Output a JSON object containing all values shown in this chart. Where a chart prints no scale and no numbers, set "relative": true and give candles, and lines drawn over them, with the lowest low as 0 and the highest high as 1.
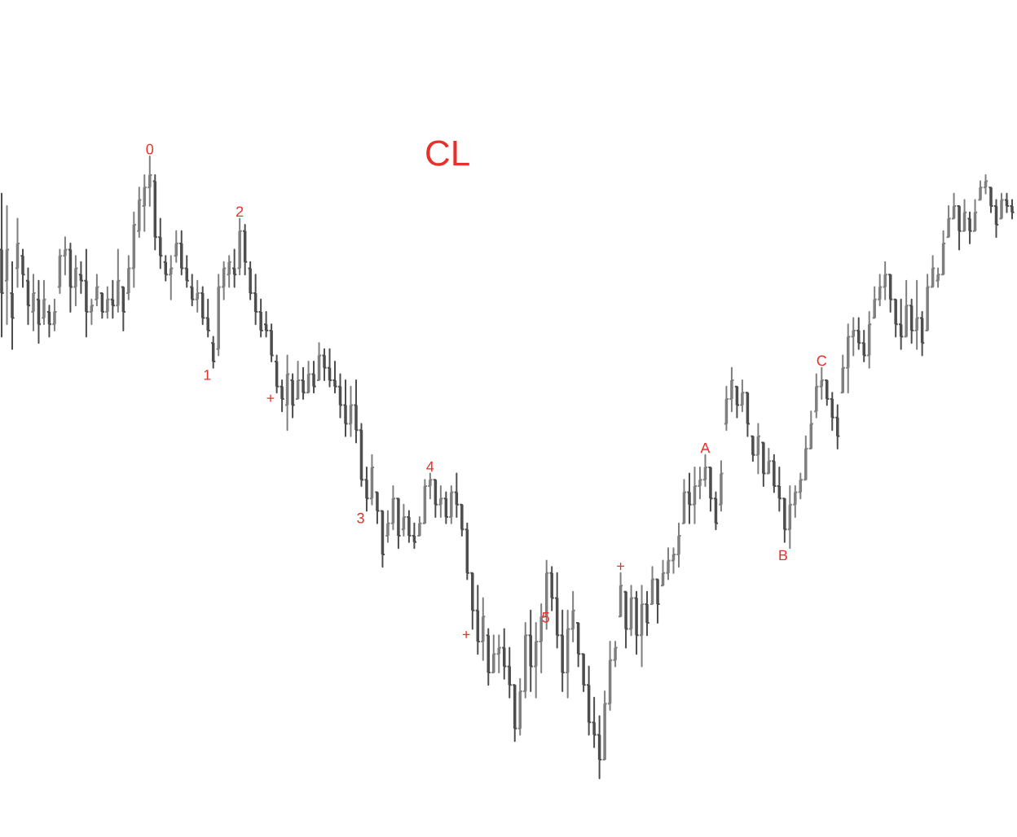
{
  "chart_data": {
    "type": "candlestick",
    "title": "CL",
    "relative": true,
    "colors": [
      "#4d4d4d",
      "#7f7f7f",
      "#4d4d4d",
      "#7f7f7f",
      "#4d4d4d",
      "#4d4d4d",
      "#7f7f7f",
      "#4d4d4d",
      "#7f7f7f",
      "#4d4d4d",
      "#7f7f7f",
      "#7f7f7f",
      "#7f7f7f",
      "#4d4d4d",
      "#7f7f7f",
      "#4d4d4d",
      "#4d4d4d",
      "#7f7f7f",
      "#7f7f7f",
      "#4d4d4d",
      "#7f7f7f",
      "#4d4d4d",
      "#7f7f7f",
      "#4d4d4d",
      "#7f7f7f",
      "#7f7f7f",
      "#7f7f7f",
      "#7f7f7f",
      "#7f7f7f",
      "#4d4d4d",
      "#4d4d4d",
      "#4d4d4d",
      "#7f7f7f",
      "#7f7f7f",
      "#4d4d4d",
      "#4d4d4d",
      "#4d4d4d",
      "#7f7f7f",
      "#4d4d4d",
      "#4d4d4d",
      "#4d4d4d",
      "#7f7f7f",
      "#7f7f7f",
      "#7f7f7f",
      "#4d4d4d",
      "#7f7f7f",
      "#4d4d4d",
      "#4d4d4d",
      "#4d4d4d",
      "#4d4d4d",
      "#4d4d4d",
      "#4d4d4d",
      "#4d4d4d",
      "#4d4d4d",
      "#7f7f7f",
      "#4d4d4d",
      "#7f7f7f",
      "#4d4d4d",
      "#7f7f7f",
      "#4d4d4d",
      "#7f7f7f",
      "#4d4d4d",
      "#4d4d4d",
      "#4d4d4d",
      "#4d4d4d",
      "#4d4d4d",
      "#7f7f7f",
      "#4d4d4d",
      "#4d4d4d",
      "#4d4d4d",
      "#7f7f7f",
      "#4d4d4d",
      "#4d4d4d",
      "#7f7f7f",
      "#7f7f7f",
      "#4d4d4d",
      "#7f7f7f",
      "#4d4d4d",
      "#4d4d4d",
      "#7f7f7f",
      "#7f7f7f",
      "#7f7f7f",
      "#4d4d4d",
      "#7f7f7f",
      "#4d4d4d",
      "#7f7f7f",
      "#4d4d4d",
      "#4d4d4d",
      "#4d4d4d",
      "#4d4d4d",
      "#4d4d4d",
      "#7f7f7f",
      "#4d4d4d",
      "#7f7f7f",
      "#7f7f7f",
      "#4d4d4d",
      "#4d4d4d",
      "#4d4d4d",
      "#7f7f7f",
      "#7f7f7f",
      "#4d4d4d",
      "#7f7f7f",
      "#7f7f7f",
      "#7f7f7f",
      "#4d4d4d",
      "#4d4d4d",
      "#4d4d4d",
      "#7f7f7f",
      "#7f7f7f",
      "#4d4d4d",
      "#4d4d4d",
      "#4d4d4d",
      "#4d4d4d",
      "#4d4d4d",
      "#7f7f7f",
      "#7f7f7f",
      "#7f7f7f",
      "#7f7f7f",
      "#4d4d4d",
      "#7f7f7f",
      "#4d4d4d",
      "#7f7f7f",
      "#4d4d4d",
      "#7f7f7f",
      "#4d4d4d",
      "#7f7f7f",
      "#7f7f7f",
      "#7f7f7f",
      "#7f7f7f",
      "#7f7f7f",
      "#4d4d4d",
      "#7f7f7f",
      "#7f7f7f",
      "#7f7f7f",
      "#4d4d4d",
      "#4d4d4d",
      "#7f7f7f",
      "#7f7f7f",
      "#7f7f7f",
      "#4d4d4d",
      "#7f7f7f",
      "#4d4d4d",
      "#4d4d4d",
      "#7f7f7f",
      "#4d4d4d",
      "#7f7f7f",
      "#4d4d4d",
      "#4d4d4d",
      "#4d4d4d",
      "#7f7f7f",
      "#7f7f7f",
      "#7f7f7f",
      "#7f7f7f",
      "#7f7f7f",
      "#7f7f7f",
      "#7f7f7f",
      "#4d4d4d",
      "#4d4d4d",
      "#4d4d4d",
      "#7f7f7f",
      "#7f7f7f",
      "#7f7f7f",
      "#4d4d4d",
      "#4d4d4d",
      "#7f7f7f",
      "#7f7f7f",
      "#7f7f7f",
      "#7f7f7f",
      "#4d4d4d",
      "#4d4d4d",
      "#4d4d4d",
      "#7f7f7f",
      "#4d4d4d",
      "#7f7f7f",
      "#4d4d4d",
      "#7f7f7f",
      "#7f7f7f",
      "#7f7f7f",
      "#7f7f7f",
      "#7f7f7f",
      "#7f7f7f",
      "#4d4d4d",
      "#7f7f7f",
      "#4d4d4d",
      "#7f7f7f",
      "#7f7f7f",
      "#7f7f7f",
      "#4d4d4d",
      "#4d4d4d",
      "#7f7f7f",
      "#4d4d4d",
      "#4d4d4d"
    ],
    "categories": [
      null,
      null,
      null,
      null,
      null,
      null,
      null,
      null,
      null,
      null,
      null,
      null,
      null,
      null,
      null,
      null,
      null,
      null,
      null,
      null,
      null,
      null,
      null,
      null,
      null,
      null,
      null,
      null,
      null,
      null,
      null,
      null,
      null,
      null,
      null,
      null,
      null,
      null,
      null,
      null,
      null,
      null,
      null,
      null,
      null,
      null,
      null,
      null,
      null,
      null,
      null,
      null,
      null,
      null,
      null,
      null,
      null,
      null,
      null,
      null,
      null,
      null,
      null,
      null,
      null,
      null,
      null,
      null,
      null,
      null,
      null,
      null,
      null,
      null,
      null,
      null,
      null,
      null,
      null,
      null,
      null,
      null,
      null,
      null,
      null,
      null,
      null,
      null,
      null,
      null,
      null,
      null,
      null,
      null,
      null,
      null,
      null,
      null,
      null,
      null,
      null,
      null,
      null,
      null,
      null,
      null,
      null,
      null,
      null,
      null,
      null,
      null,
      null,
      null,
      null,
      null,
      null,
      null,
      null,
      null,
      null,
      null,
      null,
      null,
      null,
      null,
      null,
      null,
      null,
      null,
      null,
      null,
      null,
      null,
      null,
      null,
      null,
      null,
      null,
      null,
      null,
      null,
      null,
      null,
      null,
      null,
      null,
      null,
      null,
      null,
      null,
      null,
      null,
      null,
      null,
      null,
      null,
      null,
      null,
      null,
      null,
      null,
      null,
      null,
      null,
      null,
      null,
      null,
      null,
      null,
      null,
      null,
      null,
      null,
      null,
      null,
      null,
      null,
      null,
      null,
      null,
      null,
      null,
      null,
      null,
      null,
      null,
      null,
      null,
      null,
      null,
      null
    ],
    "ohlc": [
      [
        0.85,
        0.94,
        0.71,
        0.78
      ],
      [
        0.8,
        0.92,
        0.73,
        0.85
      ],
      [
        0.78,
        0.83,
        0.69,
        0.74
      ],
      [
        0.82,
        0.9,
        0.79,
        0.86
      ],
      [
        0.84,
        0.85,
        0.79,
        0.81
      ],
      [
        0.8,
        0.82,
        0.73,
        0.76
      ],
      [
        0.75,
        0.81,
        0.72,
        0.78
      ],
      [
        0.77,
        0.8,
        0.7,
        0.73
      ],
      [
        0.74,
        0.8,
        0.73,
        0.77
      ],
      [
        0.75,
        0.76,
        0.71,
        0.73
      ],
      [
        0.73,
        0.77,
        0.72,
        0.75
      ],
      [
        0.79,
        0.85,
        0.78,
        0.84
      ],
      [
        0.84,
        0.87,
        0.81,
        0.85
      ],
      [
        0.85,
        0.86,
        0.75,
        0.79
      ],
      [
        0.79,
        0.84,
        0.76,
        0.82
      ],
      [
        0.81,
        0.83,
        0.78,
        0.8
      ],
      [
        0.8,
        0.85,
        0.71,
        0.75
      ],
      [
        0.75,
        0.77,
        0.73,
        0.76
      ],
      [
        0.77,
        0.81,
        0.76,
        0.79
      ],
      [
        0.78,
        0.78,
        0.74,
        0.75
      ],
      [
        0.75,
        0.79,
        0.74,
        0.77
      ],
      [
        0.77,
        0.8,
        0.74,
        0.76
      ],
      [
        0.76,
        0.85,
        0.75,
        0.8
      ],
      [
        0.79,
        0.79,
        0.72,
        0.75
      ],
      [
        0.78,
        0.84,
        0.77,
        0.82
      ],
      [
        0.82,
        0.91,
        0.79,
        0.89
      ],
      [
        0.88,
        0.95,
        0.87,
        0.93
      ],
      [
        0.92,
        0.97,
        0.88,
        0.95
      ],
      [
        0.95,
        1,
        0.92,
        0.97
      ],
      [
        0.96,
        0.97,
        0.85,
        0.87
      ],
      [
        0.87,
        0.9,
        0.82,
        0.84
      ],
      [
        0.83,
        0.84,
        0.8,
        0.81
      ],
      [
        0.81,
        0.84,
        0.77,
        0.82
      ],
      [
        0.84,
        0.88,
        0.83,
        0.86
      ],
      [
        0.86,
        0.88,
        0.81,
        0.82
      ],
      [
        0.82,
        0.84,
        0.79,
        0.8
      ],
      [
        0.79,
        0.81,
        0.76,
        0.77
      ],
      [
        0.77,
        0.8,
        0.75,
        0.78
      ],
      [
        0.78,
        0.79,
        0.73,
        0.74
      ],
      [
        0.74,
        0.77,
        0.71,
        0.72
      ],
      [
        0.7,
        0.71,
        0.66,
        0.67
      ],
      [
        0.69,
        0.81,
        0.68,
        0.79
      ],
      [
        0.79,
        0.83,
        0.77,
        0.82
      ],
      [
        0.81,
        0.84,
        0.79,
        0.83
      ],
      [
        0.82,
        0.85,
        0.79,
        0.81
      ],
      [
        0.82,
        0.9,
        0.81,
        0.88
      ],
      [
        0.88,
        0.89,
        0.81,
        0.83
      ],
      [
        0.82,
        0.83,
        0.77,
        0.78
      ],
      [
        0.78,
        0.81,
        0.73,
        0.75
      ],
      [
        0.75,
        0.77,
        0.71,
        0.72
      ],
      [
        0.73,
        0.75,
        0.71,
        0.72
      ],
      [
        0.72,
        0.73,
        0.67,
        0.68
      ],
      [
        0.67,
        0.68,
        0.62,
        0.63
      ],
      [
        0.63,
        0.64,
        0.59,
        0.61
      ],
      [
        0.6,
        0.68,
        0.56,
        0.65
      ],
      [
        0.64,
        0.65,
        0.58,
        0.6
      ],
      [
        0.61,
        0.67,
        0.61,
        0.64
      ],
      [
        0.64,
        0.66,
        0.61,
        0.62
      ],
      [
        0.62,
        0.67,
        0.62,
        0.65
      ],
      [
        0.65,
        0.67,
        0.62,
        0.63
      ],
      [
        0.64,
        0.7,
        0.64,
        0.68
      ],
      [
        0.68,
        0.69,
        0.64,
        0.66
      ],
      [
        0.66,
        0.69,
        0.63,
        0.64
      ],
      [
        0.64,
        0.67,
        0.62,
        0.63
      ],
      [
        0.63,
        0.65,
        0.58,
        0.6
      ],
      [
        0.6,
        0.64,
        0.55,
        0.57
      ],
      [
        0.57,
        0.63,
        0.55,
        0.6
      ],
      [
        0.6,
        0.64,
        0.54,
        0.56
      ],
      [
        0.56,
        0.57,
        0.47,
        0.48
      ],
      [
        0.48,
        0.5,
        0.43,
        0.45
      ],
      [
        0.45,
        0.52,
        0.44,
        0.5
      ],
      [
        0.46,
        0.46,
        0.41,
        0.43
      ],
      [
        0.43,
        0.43,
        0.34,
        0.36
      ],
      [
        0.39,
        0.43,
        0.38,
        0.41
      ],
      [
        0.41,
        0.47,
        0.4,
        0.45
      ],
      [
        0.45,
        0.45,
        0.37,
        0.39
      ],
      [
        0.4,
        0.44,
        0.39,
        0.42
      ],
      [
        0.42,
        0.43,
        0.38,
        0.39
      ],
      [
        0.39,
        0.41,
        0.37,
        0.38
      ],
      [
        0.39,
        0.42,
        0.39,
        0.41
      ],
      [
        0.41,
        0.48,
        0.41,
        0.47
      ],
      [
        0.47,
        0.49,
        0.45,
        0.48
      ],
      [
        0.48,
        0.48,
        0.42,
        0.44
      ],
      [
        0.44,
        0.47,
        0.42,
        0.45
      ],
      [
        0.45,
        0.46,
        0.41,
        0.42
      ],
      [
        0.42,
        0.47,
        0.41,
        0.46
      ],
      [
        0.46,
        0.49,
        0.42,
        0.44
      ],
      [
        0.44,
        0.44,
        0.39,
        0.4
      ],
      [
        0.4,
        0.41,
        0.32,
        0.33
      ],
      [
        0.33,
        0.33,
        0.24,
        0.27
      ],
      [
        0.27,
        0.31,
        0.2,
        0.22
      ],
      [
        0.22,
        0.29,
        0.19,
        0.26
      ],
      [
        0.23,
        0.24,
        0.15,
        0.17
      ],
      [
        0.17,
        0.23,
        0.17,
        0.2
      ],
      [
        0.2,
        0.23,
        0.17,
        0.21
      ],
      [
        0.21,
        0.24,
        0.16,
        0.18
      ],
      [
        0.18,
        0.21,
        0.13,
        0.15
      ],
      [
        0.15,
        0.15,
        0.06,
        0.08
      ],
      [
        0.08,
        0.16,
        0.07,
        0.14
      ],
      [
        0.14,
        0.25,
        0.13,
        0.23
      ],
      [
        0.23,
        0.27,
        0.14,
        0.18
      ],
      [
        0.18,
        0.25,
        0.13,
        0.22
      ],
      [
        0.22,
        0.28,
        0.17,
        0.26
      ],
      [
        0.26,
        0.35,
        0.24,
        0.33
      ],
      [
        0.33,
        0.34,
        0.27,
        0.29
      ],
      [
        0.29,
        0.33,
        0.21,
        0.23
      ],
      [
        0.23,
        0.27,
        0.14,
        0.17
      ],
      [
        0.17,
        0.27,
        0.13,
        0.24
      ],
      [
        0.24,
        0.3,
        0.22,
        0.27
      ],
      [
        0.25,
        0.25,
        0.18,
        0.2
      ],
      [
        0.2,
        0.2,
        0.14,
        0.15
      ],
      [
        0.15,
        0.18,
        0.07,
        0.09
      ],
      [
        0.09,
        0.13,
        0.05,
        0.07
      ],
      [
        0.07,
        0.1,
        0,
        0.03
      ],
      [
        0.03,
        0.14,
        0.03,
        0.12
      ],
      [
        0.12,
        0.22,
        0.11,
        0.19
      ],
      [
        0.19,
        0.22,
        0.18,
        0.21
      ],
      [
        0.26,
        0.33,
        0.26,
        0.31
      ],
      [
        0.3,
        0.3,
        0.21,
        0.24
      ],
      [
        0.24,
        0.31,
        0.23,
        0.29
      ],
      [
        0.29,
        0.3,
        0.2,
        0.23
      ],
      [
        0.23,
        0.31,
        0.18,
        0.28
      ],
      [
        0.28,
        0.3,
        0.23,
        0.25
      ],
      [
        0.28,
        0.34,
        0.28,
        0.32
      ],
      [
        0.32,
        0.32,
        0.25,
        0.28
      ],
      [
        0.31,
        0.35,
        0.31,
        0.33
      ],
      [
        0.33,
        0.37,
        0.32,
        0.35
      ],
      [
        0.35,
        0.37,
        0.33,
        0.36
      ],
      [
        0.36,
        0.41,
        0.34,
        0.39
      ],
      [
        0.41,
        0.48,
        0.41,
        0.46
      ],
      [
        0.46,
        0.49,
        0.41,
        0.44
      ],
      [
        0.44,
        0.5,
        0.41,
        0.47
      ],
      [
        0.47,
        0.5,
        0.45,
        0.48
      ],
      [
        0.48,
        0.52,
        0.47,
        0.5
      ],
      [
        0.5,
        0.5,
        0.43,
        0.45
      ],
      [
        0.45,
        0.46,
        0.4,
        0.41
      ],
      [
        0.44,
        0.51,
        0.43,
        0.49
      ],
      [
        0.57,
        0.63,
        0.56,
        0.61
      ],
      [
        0.61,
        0.66,
        0.59,
        0.64
      ],
      [
        0.63,
        0.63,
        0.58,
        0.6
      ],
      [
        0.6,
        0.64,
        0.59,
        0.62
      ],
      [
        0.62,
        0.62,
        0.55,
        0.57
      ],
      [
        0.55,
        0.55,
        0.51,
        0.52
      ],
      [
        0.52,
        0.57,
        0.49,
        0.55
      ],
      [
        0.54,
        0.54,
        0.47,
        0.49
      ],
      [
        0.49,
        0.53,
        0.49,
        0.51
      ],
      [
        0.51,
        0.52,
        0.46,
        0.47
      ],
      [
        0.47,
        0.5,
        0.43,
        0.45
      ],
      [
        0.45,
        0.45,
        0.38,
        0.4
      ],
      [
        0.4,
        0.47,
        0.37,
        0.44
      ],
      [
        0.44,
        0.47,
        0.42,
        0.46
      ],
      [
        0.46,
        0.49,
        0.45,
        0.48
      ],
      [
        0.48,
        0.55,
        0.48,
        0.53
      ],
      [
        0.53,
        0.59,
        0.53,
        0.57
      ],
      [
        0.59,
        0.65,
        0.58,
        0.63
      ],
      [
        0.63,
        0.66,
        0.61,
        0.64
      ],
      [
        0.64,
        0.64,
        0.6,
        0.61
      ],
      [
        0.61,
        0.62,
        0.56,
        0.58
      ],
      [
        0.58,
        0.6,
        0.53,
        0.55
      ],
      [
        0.62,
        0.68,
        0.62,
        0.66
      ],
      [
        0.66,
        0.73,
        0.62,
        0.71
      ],
      [
        0.71,
        0.74,
        0.68,
        0.72
      ],
      [
        0.72,
        0.74,
        0.69,
        0.7
      ],
      [
        0.7,
        0.72,
        0.67,
        0.68
      ],
      [
        0.68,
        0.75,
        0.66,
        0.73
      ],
      [
        0.74,
        0.79,
        0.74,
        0.77
      ],
      [
        0.77,
        0.81,
        0.76,
        0.79
      ],
      [
        0.79,
        0.83,
        0.77,
        0.81
      ],
      [
        0.81,
        0.81,
        0.75,
        0.77
      ],
      [
        0.77,
        0.77,
        0.71,
        0.73
      ],
      [
        0.73,
        0.77,
        0.69,
        0.71
      ],
      [
        0.71,
        0.8,
        0.71,
        0.76
      ],
      [
        0.76,
        0.77,
        0.7,
        0.72
      ],
      [
        0.72,
        0.8,
        0.69,
        0.74
      ],
      [
        0.74,
        0.75,
        0.68,
        0.7
      ],
      [
        0.72,
        0.81,
        0.72,
        0.79
      ],
      [
        0.79,
        0.84,
        0.79,
        0.82
      ],
      [
        0.8,
        0.82,
        0.79,
        0.81
      ],
      [
        0.81,
        0.88,
        0.81,
        0.86
      ],
      [
        0.87,
        0.92,
        0.87,
        0.9
      ],
      [
        0.9,
        0.94,
        0.9,
        0.92
      ],
      [
        0.92,
        0.92,
        0.85,
        0.88
      ],
      [
        0.88,
        0.93,
        0.88,
        0.91
      ],
      [
        0.9,
        0.91,
        0.86,
        0.88
      ],
      [
        0.88,
        0.93,
        0.88,
        0.91
      ],
      [
        0.93,
        0.96,
        0.93,
        0.95
      ],
      [
        0.95,
        0.97,
        0.94,
        0.96
      ],
      [
        0.95,
        0.95,
        0.91,
        0.92
      ],
      [
        0.92,
        0.93,
        0.87,
        0.89
      ],
      [
        0.9,
        0.94,
        0.9,
        0.93
      ],
      [
        0.93,
        0.94,
        0.91,
        0.92
      ],
      [
        0.92,
        0.93,
        0.9,
        0.91
      ]
    ],
    "value_labels": [
      null,
      null,
      null,
      null,
      null,
      null,
      null,
      null,
      null,
      null,
      null,
      null,
      null,
      null,
      null,
      null,
      null,
      null,
      null,
      null,
      null,
      null,
      null,
      null,
      null,
      null,
      null,
      null,
      "0",
      null,
      null,
      null,
      null,
      null,
      null,
      null,
      null,
      null,
      null,
      null,
      "1",
      null,
      null,
      null,
      null,
      "2",
      null,
      null,
      null,
      null,
      null,
      null,
      "+",
      null,
      null,
      null,
      null,
      null,
      null,
      null,
      null,
      null,
      null,
      null,
      null,
      null,
      null,
      null,
      null,
      "3",
      null,
      null,
      null,
      null,
      null,
      null,
      null,
      null,
      null,
      null,
      null,
      "4",
      null,
      null,
      null,
      null,
      null,
      null,
      null,
      "+",
      null,
      null,
      null,
      null,
      null,
      null,
      null,
      null,
      null,
      null,
      null,
      null,
      null,
      null,
      "5",
      null,
      null,
      null,
      null,
      null,
      null,
      null,
      null,
      null,
      null,
      null,
      null,
      "+",
      null,
      null,
      null,
      null,
      null,
      null,
      null,
      null,
      null,
      null,
      null,
      null,
      null,
      null,
      null,
      "A",
      null,
      null,
      null,
      null,
      null,
      null,
      null,
      null,
      null,
      null,
      null,
      null,
      null,
      null,
      null,
      "B",
      null,
      null,
      null,
      null,
      null,
      "C",
      null,
      null,
      null,
      null,
      null,
      null,
      null,
      null,
      null,
      null,
      null,
      null,
      null,
      null,
      null,
      null,
      null,
      null,
      null,
      null,
      null,
      null,
      null,
      null,
      null,
      null,
      null,
      null,
      null,
      null,
      null,
      null,
      null,
      null,
      null,
      null
    ]
  }
}
